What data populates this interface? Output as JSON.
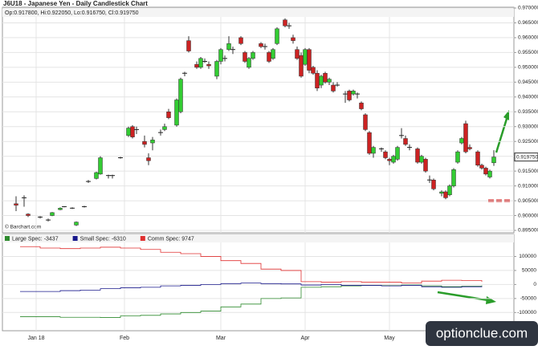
{
  "chart_data": [
    {
      "type": "candlestick",
      "title": "J6U18 - Japanese Yen - Daily Candlestick Chart",
      "subtitle": "Op:0.917800, Hi:0.922050, Lo:0.916750, Cl:0.919750",
      "last_label": "0.919750",
      "source": "© Barchart.com",
      "up_color": "#33cc33",
      "down_color": "#cc2222",
      "flat_color": "#222222",
      "x": [
        3,
        5,
        6,
        9,
        11,
        12,
        14,
        15,
        17,
        18,
        20,
        21,
        23,
        24,
        26,
        27,
        29,
        31,
        32,
        33,
        35,
        36,
        37,
        39,
        40,
        41,
        43,
        44,
        45,
        46,
        48,
        49,
        50,
        51,
        53,
        54,
        55,
        56,
        57,
        59,
        60,
        61,
        62,
        64,
        65,
        66,
        67,
        68,
        70,
        71,
        72,
        73,
        74,
        75,
        76,
        77,
        78,
        79,
        80,
        81,
        82,
        83,
        85,
        86,
        87,
        88,
        89,
        90,
        91,
        92,
        94,
        95,
        96,
        97,
        98,
        99,
        100,
        101,
        103,
        104,
        105,
        106,
        107,
        109,
        110,
        111,
        112,
        113,
        114,
        115,
        116,
        118,
        119,
        120,
        121,
        122
      ],
      "open": [
        0.904,
        0.906,
        0.9005,
        0.8995,
        0.8985,
        0.9,
        0.902,
        0.903,
        0.9025,
        0.8968,
        0.903,
        0.9115,
        0.9125,
        0.914,
        0.9135,
        0.9135,
        0.9195,
        0.927,
        0.93,
        0.929,
        0.925,
        0.9195,
        0.9245,
        0.928,
        0.929,
        0.935,
        0.9305,
        0.935,
        0.948,
        0.959,
        0.951,
        0.95,
        0.952,
        0.951,
        0.947,
        0.952,
        0.953,
        0.956,
        0.956,
        0.96,
        0.955,
        0.95,
        0.953,
        0.958,
        0.957,
        0.955,
        0.953,
        0.958,
        0.966,
        0.964,
        0.96,
        0.956,
        0.954,
        0.951,
        0.956,
        0.95,
        0.948,
        0.944,
        0.948,
        0.945,
        0.944,
        0.944,
        0.941,
        0.942,
        0.941,
        0.941,
        0.938,
        0.934,
        0.928,
        0.921,
        0.9225,
        0.9215,
        0.919,
        0.918,
        0.919,
        0.927,
        0.926,
        0.923,
        0.9225,
        0.918,
        0.919,
        0.912,
        0.912,
        0.9075,
        0.908,
        0.907,
        0.91,
        0.918,
        0.9245,
        0.931,
        0.923,
        0.9215,
        0.917,
        0.916,
        0.913,
        0.9178
      ],
      "high": [
        0.9065,
        0.9068,
        0.9008,
        0.8998,
        0.899,
        0.9012,
        0.9028,
        0.9032,
        0.9028,
        0.898,
        0.9033,
        0.912,
        0.9148,
        0.92,
        0.9138,
        0.9138,
        0.9198,
        0.93,
        0.9305,
        0.93,
        0.927,
        0.921,
        0.9265,
        0.929,
        0.931,
        0.936,
        0.9395,
        0.9465,
        0.9485,
        0.9605,
        0.952,
        0.9535,
        0.953,
        0.952,
        0.9525,
        0.9565,
        0.954,
        0.9605,
        0.957,
        0.9605,
        0.9555,
        0.9535,
        0.9555,
        0.9585,
        0.958,
        0.9555,
        0.9565,
        0.9635,
        0.9665,
        0.965,
        0.961,
        0.957,
        0.955,
        0.9565,
        0.9565,
        0.9505,
        0.949,
        0.9475,
        0.9485,
        0.9465,
        0.945,
        0.945,
        0.942,
        0.9425,
        0.9425,
        0.9415,
        0.9385,
        0.9345,
        0.9285,
        0.9235,
        0.923,
        0.922,
        0.9195,
        0.9205,
        0.9235,
        0.9295,
        0.927,
        0.924,
        0.923,
        0.9205,
        0.9195,
        0.9135,
        0.9125,
        0.9085,
        0.9085,
        0.9105,
        0.916,
        0.922,
        0.9265,
        0.932,
        0.924,
        0.922,
        0.9175,
        0.9165,
        0.9155,
        0.92205
      ],
      "low": [
        0.9015,
        0.903,
        0.8995,
        0.899,
        0.898,
        0.8998,
        0.9018,
        0.9028,
        0.9022,
        0.8965,
        0.9027,
        0.911,
        0.9122,
        0.9138,
        0.9125,
        0.9125,
        0.9192,
        0.9265,
        0.926,
        0.9275,
        0.923,
        0.917,
        0.922,
        0.927,
        0.9285,
        0.9325,
        0.93,
        0.9345,
        0.947,
        0.955,
        0.9495,
        0.9495,
        0.9515,
        0.9495,
        0.946,
        0.951,
        0.952,
        0.9555,
        0.9545,
        0.9575,
        0.9515,
        0.9495,
        0.9525,
        0.9565,
        0.956,
        0.9515,
        0.9525,
        0.9575,
        0.9635,
        0.963,
        0.958,
        0.9525,
        0.9465,
        0.9505,
        0.948,
        0.9475,
        0.942,
        0.943,
        0.9445,
        0.944,
        0.9415,
        0.9435,
        0.938,
        0.9385,
        0.9405,
        0.9395,
        0.9355,
        0.9285,
        0.9205,
        0.9195,
        0.9215,
        0.919,
        0.917,
        0.9175,
        0.9185,
        0.926,
        0.9235,
        0.922,
        0.9175,
        0.9175,
        0.9145,
        0.911,
        0.9085,
        0.9065,
        0.9055,
        0.9065,
        0.9095,
        0.9175,
        0.924,
        0.921,
        0.922,
        0.9165,
        0.9155,
        0.9135,
        0.9125,
        0.91675
      ],
      "close": [
        0.9035,
        0.906,
        0.9,
        0.8995,
        0.8985,
        0.901,
        0.9025,
        0.903,
        0.9025,
        0.8978,
        0.903,
        0.9115,
        0.9145,
        0.9195,
        0.9135,
        0.9135,
        0.9195,
        0.9295,
        0.9265,
        0.929,
        0.924,
        0.9185,
        0.9255,
        0.928,
        0.93,
        0.933,
        0.939,
        0.946,
        0.948,
        0.9555,
        0.95,
        0.953,
        0.952,
        0.9505,
        0.952,
        0.956,
        0.953,
        0.958,
        0.956,
        0.958,
        0.952,
        0.953,
        0.955,
        0.957,
        0.957,
        0.952,
        0.956,
        0.963,
        0.964,
        0.964,
        0.959,
        0.953,
        0.947,
        0.956,
        0.949,
        0.948,
        0.943,
        0.947,
        0.945,
        0.946,
        0.942,
        0.944,
        0.941,
        0.939,
        0.942,
        0.941,
        0.936,
        0.929,
        0.921,
        0.923,
        0.9225,
        0.9195,
        0.9185,
        0.92,
        0.923,
        0.927,
        0.924,
        0.923,
        0.918,
        0.92,
        0.915,
        0.912,
        0.909,
        0.908,
        0.906,
        0.91,
        0.9155,
        0.9215,
        0.926,
        0.9215,
        0.9225,
        0.917,
        0.916,
        0.914,
        0.915,
        0.91975
      ],
      "xlim": [
        0,
        127
      ],
      "ylim": [
        0.895,
        0.97
      ],
      "xticks": [
        {
          "value": 8,
          "label": "Jan 18"
        },
        {
          "value": 30,
          "label": "Feb"
        },
        {
          "value": 54,
          "label": "Mar"
        },
        {
          "value": 75,
          "label": "Apr"
        },
        {
          "value": 96,
          "label": "May"
        }
      ],
      "yticks": [
        {
          "value": 0.895,
          "label": "0.895000"
        },
        {
          "value": 0.9,
          "label": "0.900000"
        },
        {
          "value": 0.905,
          "label": "0.905000"
        },
        {
          "value": 0.91,
          "label": "0.910000"
        },
        {
          "value": 0.915,
          "label": "0.915000"
        },
        {
          "value": 0.92,
          "label": "0.920000"
        },
        {
          "value": 0.925,
          "label": "0.925000"
        },
        {
          "value": 0.93,
          "label": "0.930000"
        },
        {
          "value": 0.935,
          "label": "0.935000"
        },
        {
          "value": 0.94,
          "label": "0.940000"
        },
        {
          "value": 0.945,
          "label": "0.945000"
        },
        {
          "value": 0.95,
          "label": "0.950000"
        },
        {
          "value": 0.955,
          "label": "0.955000"
        },
        {
          "value": 0.96,
          "label": "0.960000"
        },
        {
          "value": 0.965,
          "label": "0.965000"
        },
        {
          "value": 0.97,
          "label": "0.970000"
        }
      ],
      "grid": true
    },
    {
      "type": "step-line",
      "watermark": "optionclue.com",
      "x": [
        4,
        9,
        14,
        19,
        24,
        29,
        34,
        39,
        44,
        49,
        54,
        59,
        64,
        69,
        74,
        79,
        84,
        89,
        94,
        99,
        104,
        109,
        114,
        119
      ],
      "series": [
        {
          "name": "Large Spec: -3437",
          "color": "#2e8b2e",
          "values": [
            -115000,
            -115000,
            -117000,
            -117000,
            -118000,
            -112000,
            -110000,
            -105000,
            -100000,
            -95000,
            -80000,
            -70000,
            -50000,
            -48000,
            -10000,
            -8000,
            -5000,
            -3000,
            -4000,
            -2000,
            -5000,
            -8000,
            -6000,
            -3437
          ]
        },
        {
          "name": "Small Spec: -6310",
          "color": "#1a1a8c",
          "values": [
            -25000,
            -25000,
            -22000,
            -20000,
            -15000,
            -12000,
            -10000,
            -5000,
            -3000,
            0,
            3000,
            5000,
            3000,
            2000,
            -2000,
            0,
            -3000,
            -3000,
            -5000,
            -3000,
            -8000,
            -10000,
            -8000,
            -6310
          ]
        },
        {
          "name": "Comm Spec: 9747",
          "color": "#e03030",
          "values": [
            135000,
            130000,
            128000,
            130000,
            133000,
            130000,
            125000,
            115000,
            110000,
            100000,
            85000,
            75000,
            55000,
            50000,
            10000,
            8000,
            10000,
            8000,
            8000,
            5000,
            12000,
            15000,
            14000,
            9747
          ]
        }
      ],
      "xlim": [
        0,
        127
      ],
      "ylim": [
        -165000,
        150000
      ],
      "yticks": [
        -100000,
        -50000,
        0,
        50000,
        100000
      ],
      "grid": true
    }
  ]
}
